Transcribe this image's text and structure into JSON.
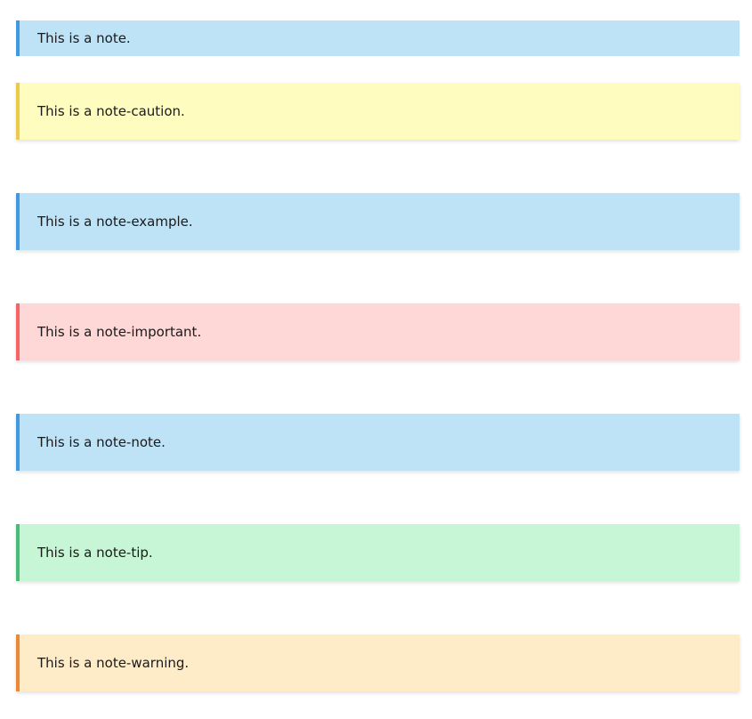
{
  "notes": [
    {
      "text": "This is a note.",
      "bg": "#bee3f7",
      "border": "#4299e1"
    },
    {
      "text": "This is a note-caution.",
      "bg": "#fefcbf",
      "border": "#ecc94b"
    },
    {
      "text": "This is a note-example.",
      "bg": "#bee3f7",
      "border": "#4299e1"
    },
    {
      "text": "This is a note-important.",
      "bg": "#fed7d7",
      "border": "#f56565"
    },
    {
      "text": "This is a note-note.",
      "bg": "#bee3f7",
      "border": "#4299e1"
    },
    {
      "text": "This is a note-tip.",
      "bg": "#c6f6d5",
      "border": "#48bb78"
    },
    {
      "text": "This is a note-warning.",
      "bg": "#feebc8",
      "border": "#ed8936"
    }
  ]
}
